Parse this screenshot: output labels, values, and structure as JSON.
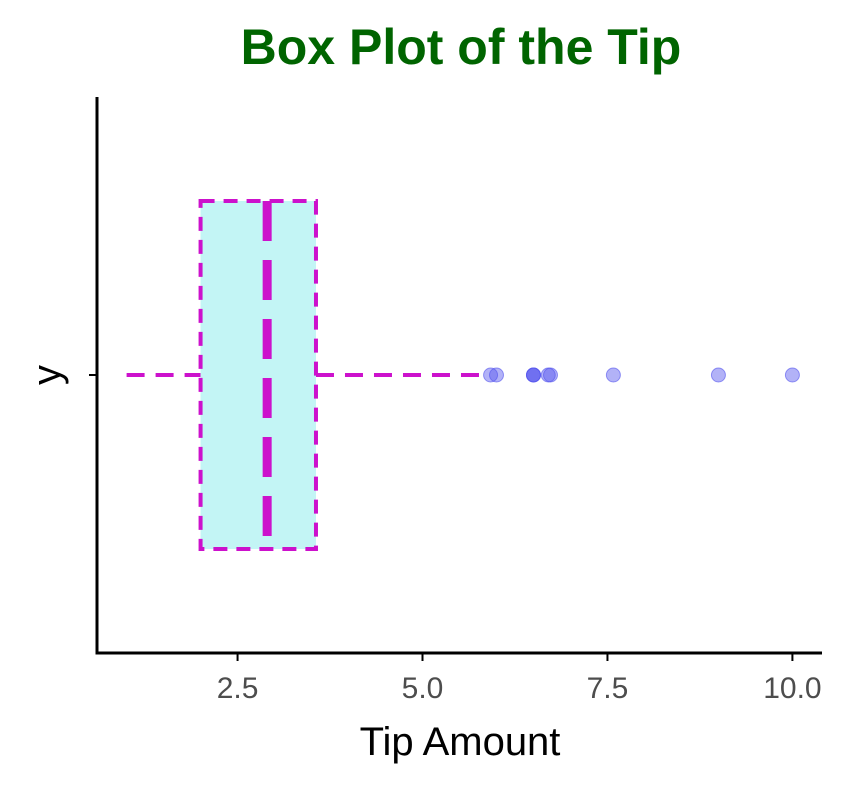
{
  "chart_data": {
    "type": "boxplot",
    "title": "Box Plot of the Tip",
    "xlabel": "Tip Amount",
    "ylabel": "y",
    "xlim": [
      0.6,
      10.4
    ],
    "x_ticks": [
      2.5,
      5.0,
      7.5,
      10.0
    ],
    "x_tick_labels": [
      "2.5",
      "5.0",
      "7.5",
      "10.0"
    ],
    "y_ticks": [
      "y"
    ],
    "grid": false,
    "box": {
      "whisker_low": 1.0,
      "q1": 2.0,
      "median": 2.9,
      "q3": 3.56,
      "whisker_high": 5.85
    },
    "outliers": [
      5.92,
      6.0,
      6.5,
      6.5,
      6.5,
      6.7,
      6.73,
      7.58,
      9.0,
      10.0
    ],
    "colors": {
      "title": "#006400",
      "box_fill": "#c3f5f5",
      "box_line": "#cc11cc",
      "outlier": "#5555ee",
      "axis": "#000000",
      "tick_label": "#4d4d4d"
    }
  }
}
